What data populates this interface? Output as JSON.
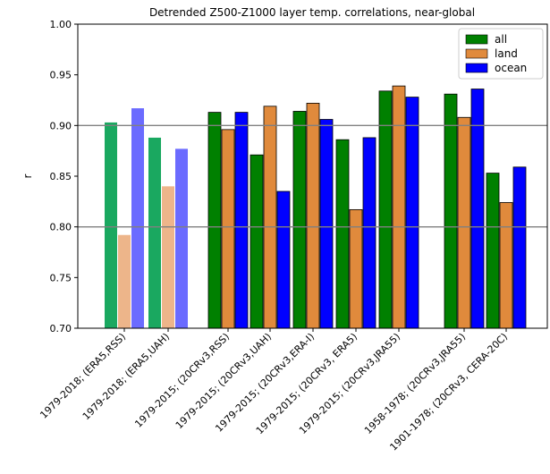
{
  "chart_data": {
    "type": "bar",
    "title": "Detrended Z500-Z1000 layer temp. correlations, near-global",
    "xlabel": "",
    "ylabel": "r",
    "ylim": [
      0.7,
      1.0
    ],
    "yticks": [
      "0.70",
      "0.75",
      "0.80",
      "0.85",
      "0.90",
      "0.95",
      "1.00"
    ],
    "reference_lines": [
      0.8,
      0.9
    ],
    "grid": false,
    "legend_position": "top-right",
    "categories": [
      "1979-2018; (ERA5,RSS)",
      "1979-2018; (ERA5,UAH)",
      "1979-2015; (20CRv3,RSS)",
      "1979-2015; (20CRv3,UAH)",
      "1979-2015; (20CRv3,ERA-I)",
      "1979-2015; (20CRv3, ERA5)",
      "1979-2015; (20CRv3,JRA55)",
      "1958-1978; (20CRv3,JRA55)",
      "1901-1978; (20CRv3, CERA-20C)"
    ],
    "faded_categories": [
      0,
      1
    ],
    "series": [
      {
        "name": "all",
        "color": "#008000",
        "faded_color": "#1aa860",
        "values": [
          0.903,
          0.888,
          0.913,
          0.871,
          0.914,
          0.886,
          0.934,
          0.931,
          0.853
        ]
      },
      {
        "name": "land",
        "color": "#e08a3c",
        "faded_color": "#edb58a",
        "values": [
          0.792,
          0.84,
          0.896,
          0.919,
          0.922,
          0.817,
          0.939,
          0.908,
          0.824
        ]
      },
      {
        "name": "ocean",
        "color": "#0000ff",
        "faded_color": "#6b6bff",
        "values": [
          0.917,
          0.877,
          0.913,
          0.835,
          0.906,
          0.888,
          0.928,
          0.936,
          0.859
        ]
      }
    ]
  }
}
